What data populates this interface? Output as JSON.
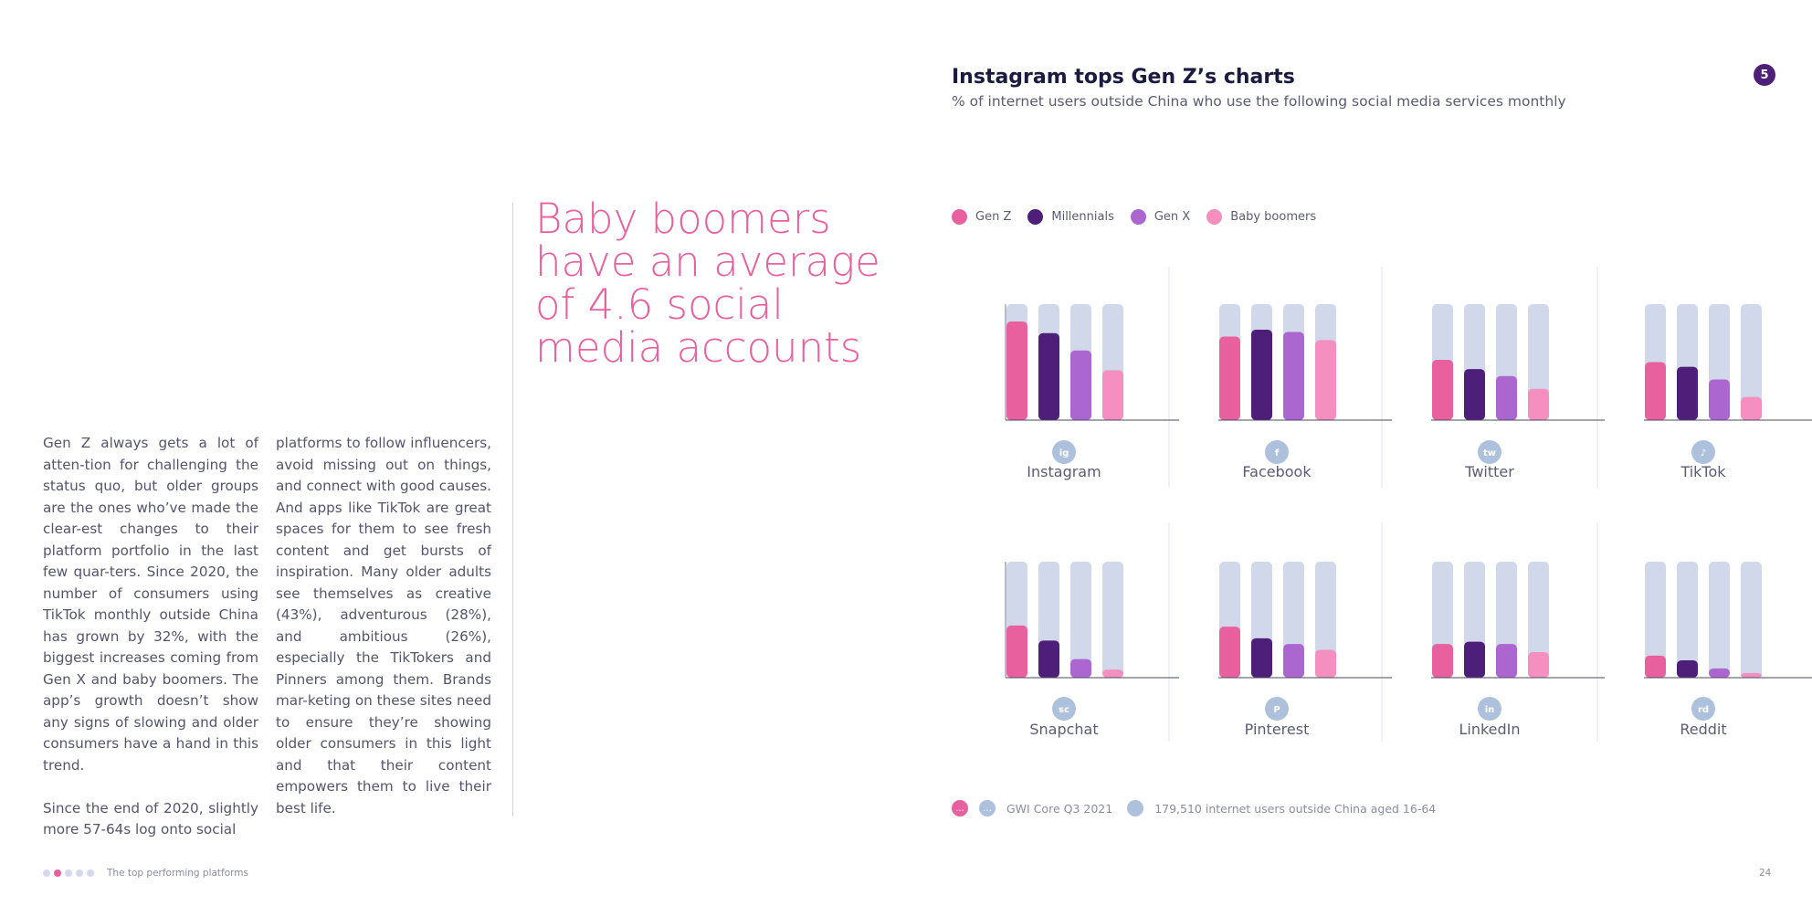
{
  "body_text": {
    "col1": [
      "Gen Z always gets a lot of atten-tion for challenging the status quo, but older groups are the ones who’ve made the clear-est changes to their platform portfolio in the last few quar-ters. Since 2020, the number of consumers using TikTok monthly outside China has grown by 32%, with the biggest increases coming from Gen X and baby boomers. The app’s growth doesn’t show any signs of slowing and older consumers have a hand in this trend.",
      "Since the end of 2020, slightly more 57-64s log onto social"
    ],
    "col2": [
      "platforms to follow influencers, avoid missing out on things, and connect with good causes. And apps like TikTok are great spaces for them to see fresh content and get bursts of inspiration. Many older adults see themselves as creative (43%), adventurous (28%), and ambitious (26%), especially the TikTokers and Pinners among them. Brands mar-keting on these sites need to ensure they’re showing older consumers in this light and that their content empowers them to live their best life."
    ]
  },
  "pull_quote": "Baby boomers have an average of 4.6 social media accounts",
  "page_badge": "5",
  "source": {
    "question_icon": "...",
    "date_icon": "...",
    "dataset": "GWI Core Q3 2021",
    "sample": "179,510 internet users outside China aged 16-64"
  },
  "footer": {
    "label": "The top performing platforms",
    "page_number": "24"
  },
  "colors": {
    "gen_z": "#e8609e",
    "millennials": "#4e1f78",
    "gen_x": "#ac66d0",
    "baby_boomers": "#f48fc0",
    "track": "#d0d8ea",
    "icon_bg": "#adc1dc"
  },
  "chart_data": {
    "type": "bar",
    "title": "Instagram tops Gen Z’s charts",
    "subtitle": "% of internet users outside China who use the following social media services monthly",
    "ylim": [
      0,
      100
    ],
    "legend": [
      "Gen Z",
      "Millennials",
      "Gen X",
      "Baby boomers"
    ],
    "categories": [
      "Instagram",
      "Facebook",
      "Twitter",
      "TikTok",
      "Snapchat",
      "Pinterest",
      "LinkedIn",
      "Reddit"
    ],
    "icons": [
      "instagram-icon",
      "facebook-icon",
      "twitter-icon",
      "tiktok-icon",
      "snapchat-icon",
      "pinterest-icon",
      "linkedin-icon",
      "reddit-icon"
    ],
    "series": [
      {
        "name": "Gen Z",
        "values": [
          85,
          72,
          52,
          50,
          45,
          44,
          29,
          19
        ]
      },
      {
        "name": "Millennials",
        "values": [
          75,
          78,
          44,
          46,
          32,
          34,
          31,
          15
        ]
      },
      {
        "name": "Gen X",
        "values": [
          60,
          76,
          38,
          35,
          16,
          29,
          29,
          8
        ]
      },
      {
        "name": "Baby boomers",
        "values": [
          43,
          69,
          27,
          20,
          7,
          24,
          22,
          4
        ]
      }
    ]
  }
}
